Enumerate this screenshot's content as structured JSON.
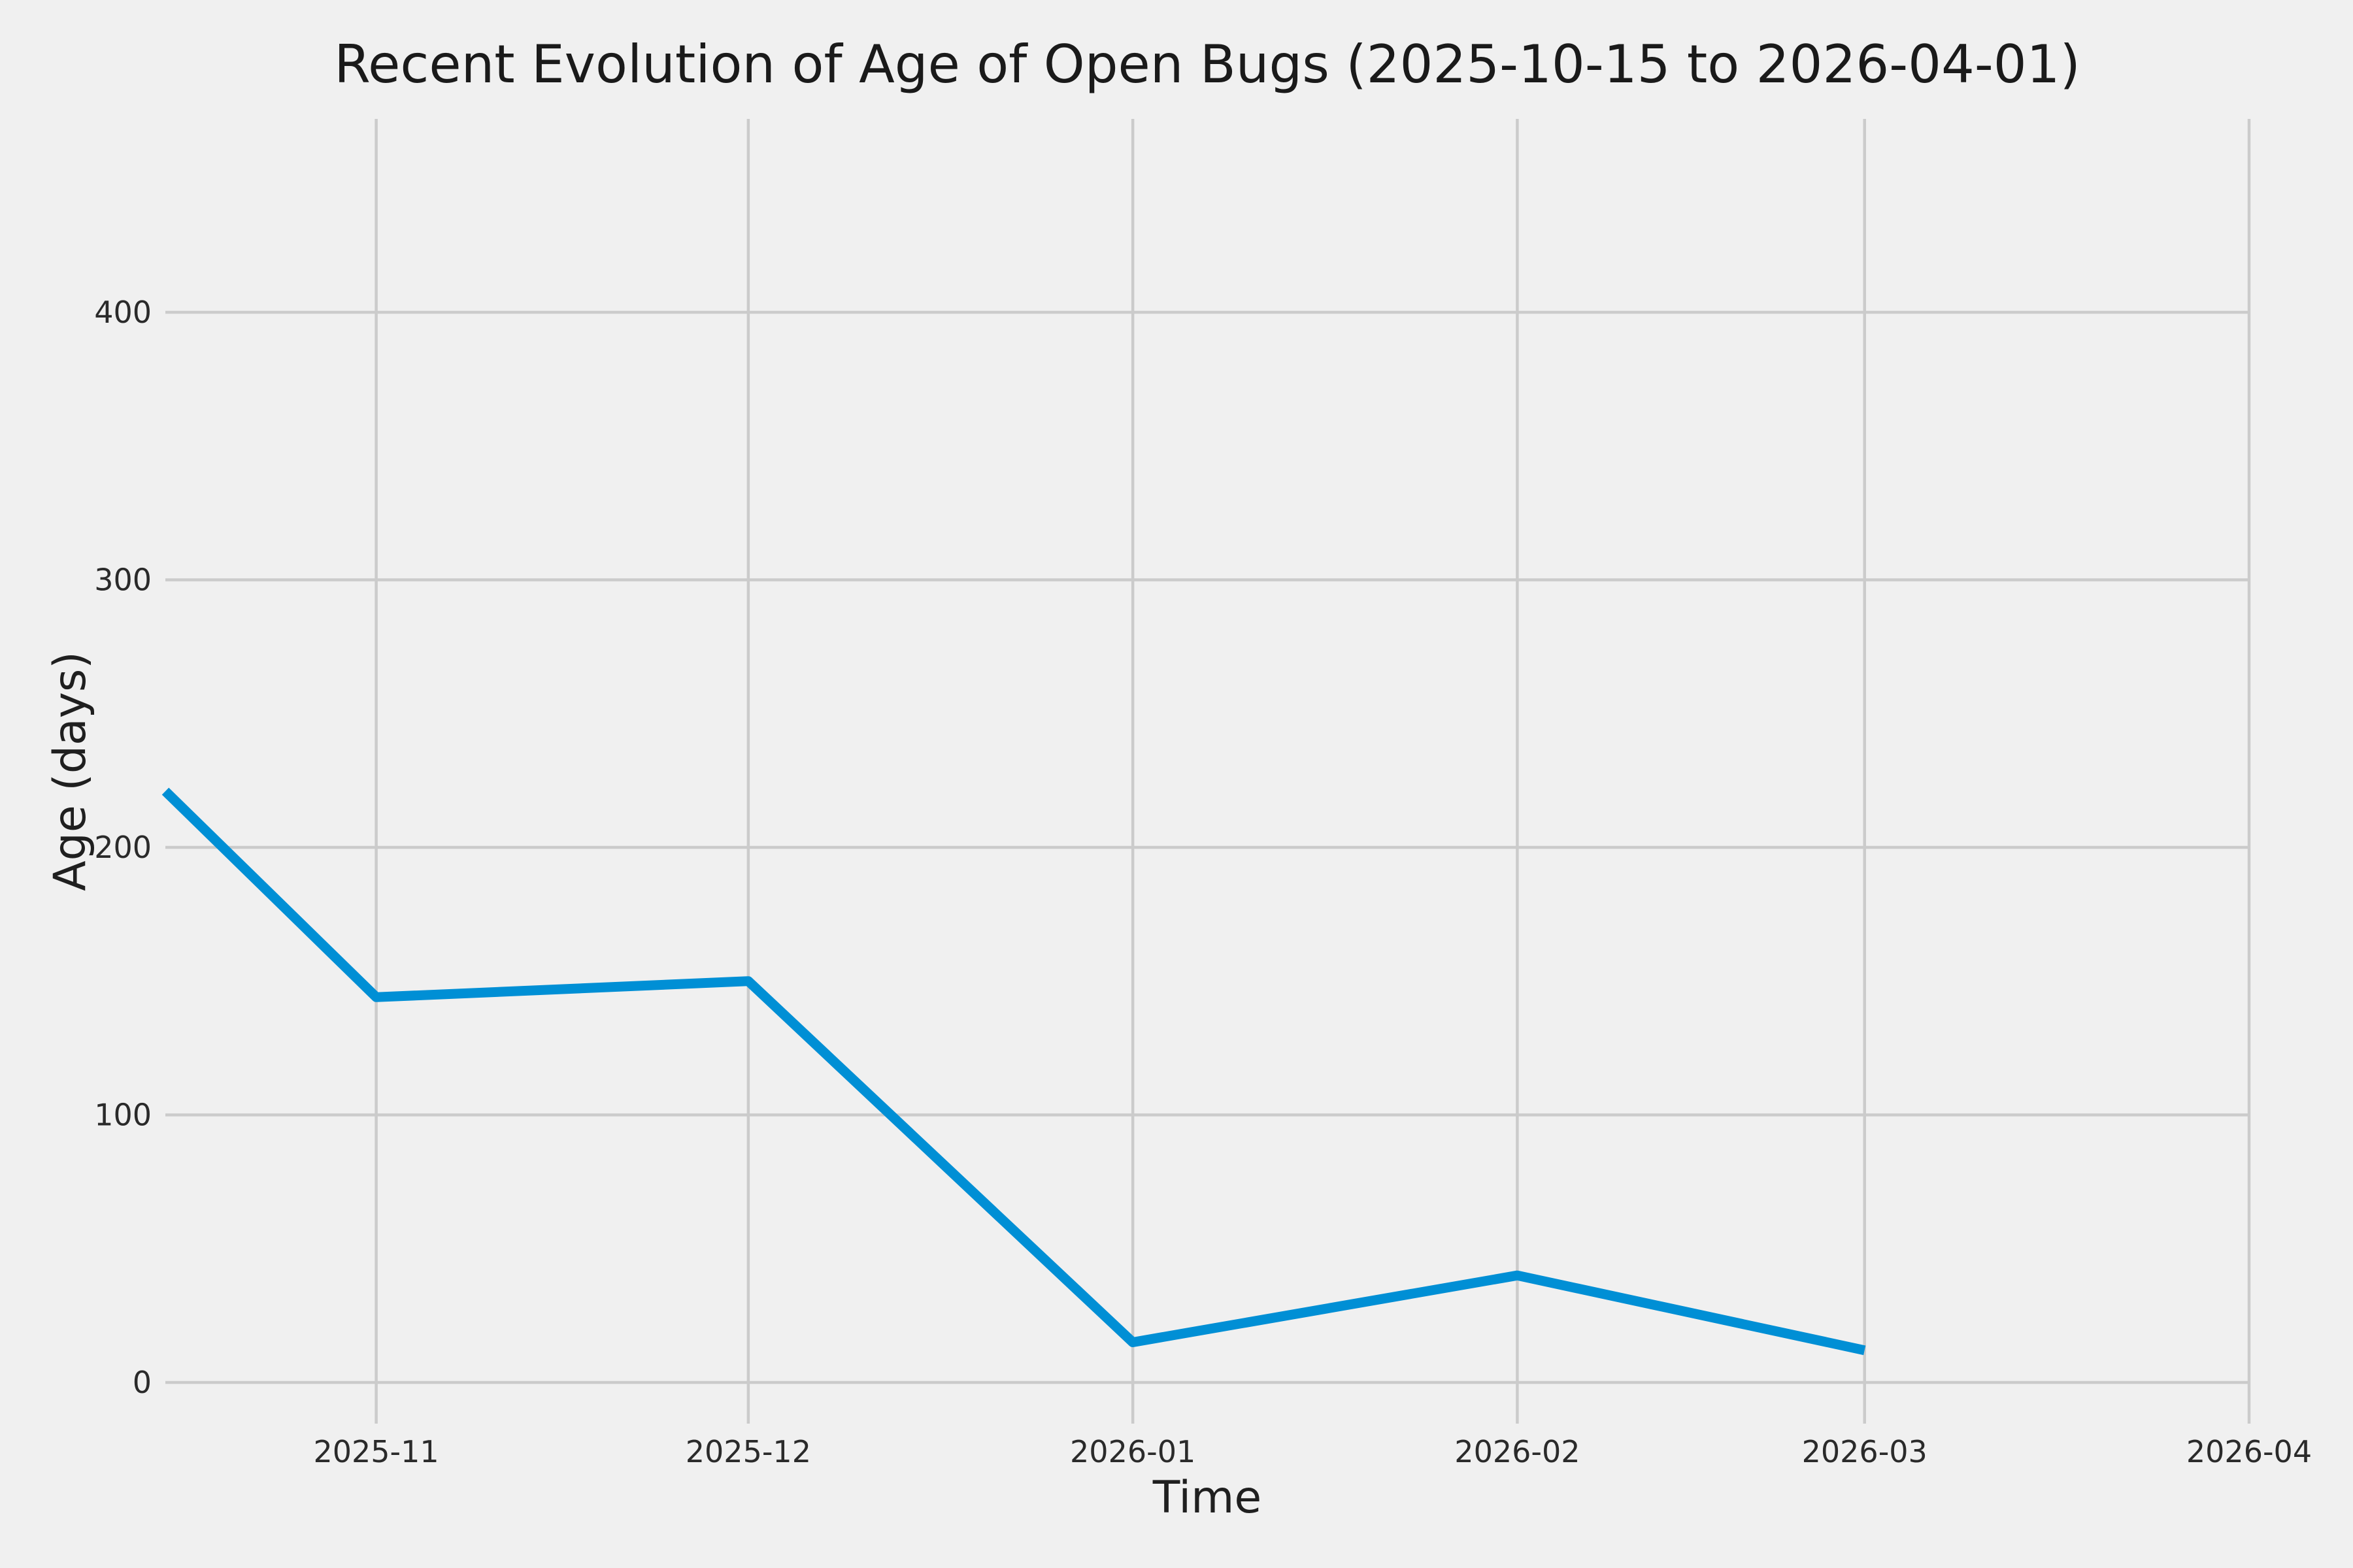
{
  "figure": {
    "background_color": "#f0f0f0",
    "grid_color": "#cbcbcb",
    "line_color": "#008fd5",
    "tick_text_color": "#2a2a2a",
    "label_text_color": "#1f1f1f",
    "title_text_color": "#1a1a1a"
  },
  "chart_data": {
    "type": "line",
    "title": "Recent Evolution of Age of Open Bugs (2025-10-15 to 2026-04-01)",
    "xlabel": "Time",
    "ylabel": "Age (days)",
    "series": [
      {
        "name": "age-of-open-bugs",
        "x": [
          "2025-10-15",
          "2025-11-01",
          "2025-12-01",
          "2026-01-01",
          "2026-02-01",
          "2026-03-01"
        ],
        "values": [
          221,
          144,
          150,
          15,
          40,
          12
        ]
      }
    ],
    "x_ticks": [
      {
        "date": "2025-11-01",
        "label": "2025-11"
      },
      {
        "date": "2025-12-01",
        "label": "2025-12"
      },
      {
        "date": "2026-01-01",
        "label": "2026-01"
      },
      {
        "date": "2026-02-01",
        "label": "2026-02"
      },
      {
        "date": "2026-03-01",
        "label": "2026-03"
      },
      {
        "date": "2026-04-01",
        "label": "2026-04"
      }
    ],
    "y_ticks": [
      {
        "value": 0,
        "label": "0"
      },
      {
        "value": 100,
        "label": "100"
      },
      {
        "value": 200,
        "label": "200"
      },
      {
        "value": 300,
        "label": "300"
      },
      {
        "value": 400,
        "label": "400"
      }
    ],
    "xlim": [
      "2025-10-15",
      "2026-04-01"
    ],
    "ylim": [
      -15.4,
      472.3
    ],
    "grid": true,
    "legend_position": "none"
  }
}
